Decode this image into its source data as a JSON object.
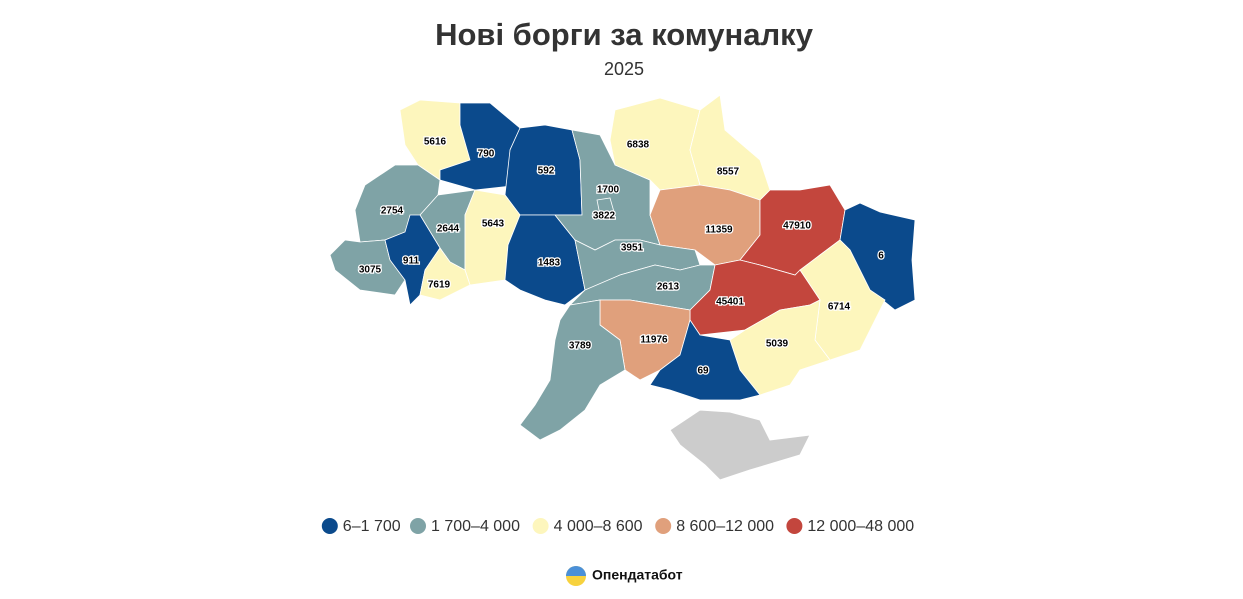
{
  "title": "Нові борги за комуналку",
  "subtitle": "2025",
  "legend": [
    {
      "min": 6,
      "max": 1700,
      "label": "6–1 700",
      "color": "#0b4a8c"
    },
    {
      "min": 1700,
      "max": 4000,
      "label": "1 700–4 000",
      "color": "#7fa3a6"
    },
    {
      "min": 4000,
      "max": 8600,
      "label": "4 000–8 600",
      "color": "#fdf6bd"
    },
    {
      "min": 8600,
      "max": 12000,
      "label": "8 600–12 000",
      "color": "#e0a07c"
    },
    {
      "min": 12000,
      "max": 48000,
      "label": "12 000–48 000",
      "color": "#c3463d"
    }
  ],
  "regions": [
    {
      "value": 5616
    },
    {
      "value": 790
    },
    {
      "value": 592
    },
    {
      "value": 2754
    },
    {
      "value": 2644
    },
    {
      "value": 5643
    },
    {
      "value": 3075
    },
    {
      "value": 911
    },
    {
      "value": 7619
    },
    {
      "value": 1483
    },
    {
      "value": 3822
    },
    {
      "value": 1700
    },
    {
      "value": 6838
    },
    {
      "value": 8557
    },
    {
      "value": 11359
    },
    {
      "value": 47910
    },
    {
      "value": 6
    },
    {
      "value": 6714
    },
    {
      "value": 3951
    },
    {
      "value": 2613
    },
    {
      "value": 45401
    },
    {
      "value": 5039
    },
    {
      "value": 11976
    },
    {
      "value": 3789
    },
    {
      "value": 69
    }
  ],
  "brand": "Опендатабот"
}
